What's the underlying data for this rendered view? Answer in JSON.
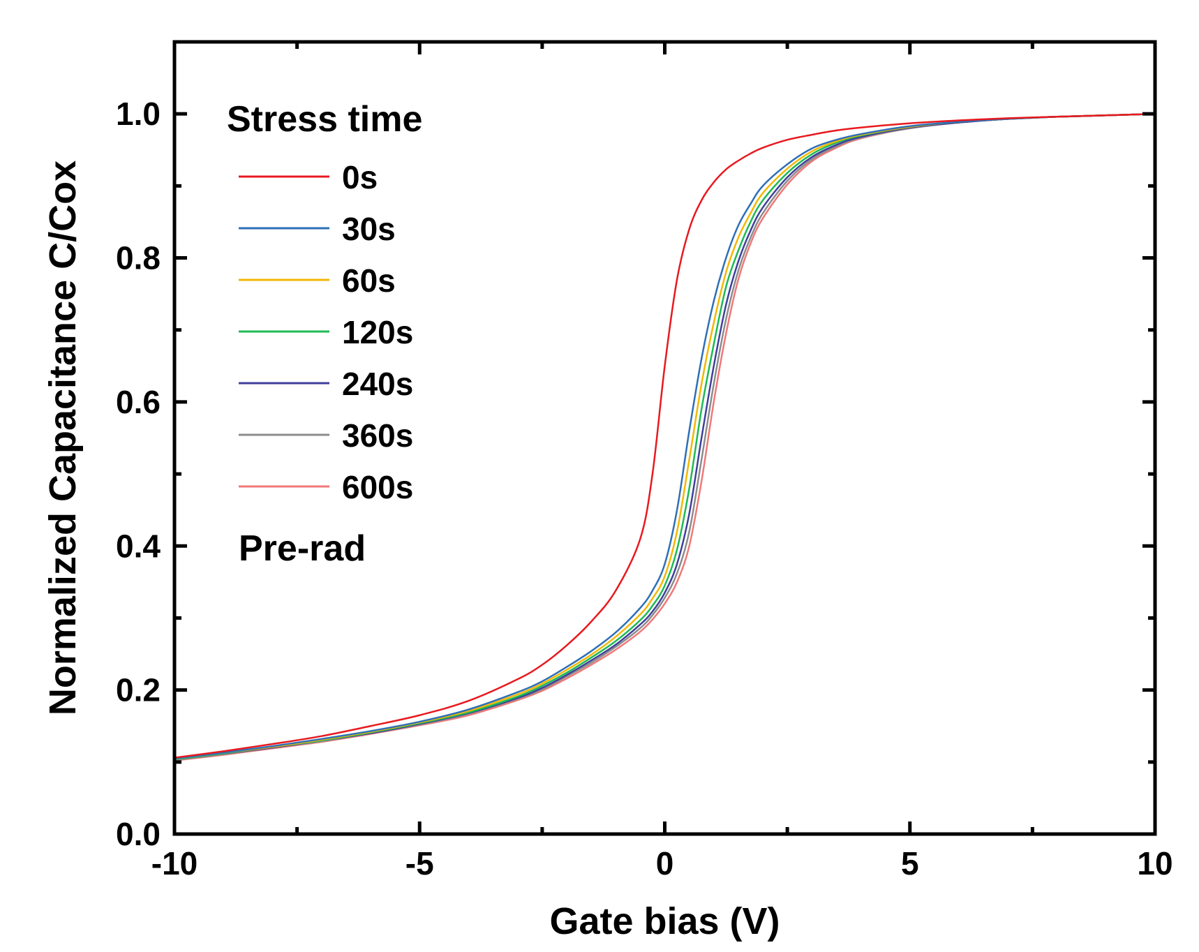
{
  "chart_data": {
    "type": "line",
    "title": "",
    "xlabel": "Gate bias (V)",
    "ylabel": "Normalized Capacitance C/Cox",
    "xlim": [
      -10,
      10
    ],
    "ylim": [
      0,
      1.1
    ],
    "xticks": [
      -10,
      -5,
      0,
      5,
      10
    ],
    "xtick_labels": [
      "-10",
      "-5",
      "0",
      "5",
      "10"
    ],
    "yticks": [
      0,
      0.2,
      0.4,
      0.6,
      0.8,
      1.0
    ],
    "ytick_labels": [
      "0.0",
      "0.2",
      "0.4",
      "0.6",
      "0.8",
      "1.0"
    ],
    "grid": false,
    "legend": {
      "title": "Stress time",
      "placement": "top-left"
    },
    "annotation": "Pre-rad",
    "x": [
      -10,
      -9,
      -8,
      -7,
      -6,
      -5,
      -4,
      -3,
      -2.5,
      -2,
      -1.5,
      -1,
      -0.5,
      -0.25,
      0,
      0.25,
      0.5,
      0.75,
      1,
      1.25,
      1.5,
      1.75,
      2,
      2.5,
      3,
      3.5,
      4,
      5,
      6,
      7,
      8,
      9,
      10
    ],
    "series": [
      {
        "name": "0s",
        "color": "#e8191f",
        "values": [
          0.106,
          0.115,
          0.125,
          0.136,
          0.15,
          0.165,
          0.185,
          0.215,
          0.235,
          0.262,
          0.295,
          0.338,
          0.41,
          0.5,
          0.65,
          0.77,
          0.84,
          0.88,
          0.905,
          0.923,
          0.935,
          0.945,
          0.953,
          0.964,
          0.971,
          0.977,
          0.981,
          0.987,
          0.991,
          0.994,
          0.996,
          0.998,
          1.0
        ]
      },
      {
        "name": "30s",
        "color": "#2e6fb7",
        "values": [
          0.105,
          0.113,
          0.122,
          0.132,
          0.143,
          0.156,
          0.173,
          0.197,
          0.212,
          0.232,
          0.254,
          0.28,
          0.314,
          0.338,
          0.375,
          0.45,
          0.56,
          0.66,
          0.74,
          0.8,
          0.845,
          0.875,
          0.9,
          0.93,
          0.952,
          0.964,
          0.972,
          0.983,
          0.989,
          0.993,
          0.996,
          0.998,
          1.0
        ]
      },
      {
        "name": "60s",
        "color": "#f2b705",
        "values": [
          0.105,
          0.113,
          0.121,
          0.131,
          0.142,
          0.155,
          0.171,
          0.194,
          0.209,
          0.228,
          0.249,
          0.274,
          0.305,
          0.327,
          0.358,
          0.42,
          0.52,
          0.625,
          0.71,
          0.78,
          0.828,
          0.862,
          0.89,
          0.924,
          0.948,
          0.962,
          0.971,
          0.982,
          0.989,
          0.993,
          0.996,
          0.998,
          1.0
        ]
      },
      {
        "name": "120s",
        "color": "#1db954",
        "values": [
          0.104,
          0.112,
          0.121,
          0.13,
          0.141,
          0.154,
          0.169,
          0.191,
          0.206,
          0.224,
          0.245,
          0.268,
          0.297,
          0.317,
          0.345,
          0.395,
          0.48,
          0.59,
          0.68,
          0.76,
          0.81,
          0.85,
          0.88,
          0.918,
          0.944,
          0.96,
          0.97,
          0.982,
          0.989,
          0.993,
          0.996,
          0.998,
          1.0
        ]
      },
      {
        "name": "240s",
        "color": "#3f3f9a",
        "values": [
          0.104,
          0.112,
          0.12,
          0.13,
          0.14,
          0.153,
          0.168,
          0.189,
          0.203,
          0.221,
          0.241,
          0.263,
          0.291,
          0.309,
          0.335,
          0.375,
          0.445,
          0.55,
          0.65,
          0.735,
          0.795,
          0.838,
          0.87,
          0.912,
          0.94,
          0.957,
          0.968,
          0.981,
          0.988,
          0.993,
          0.996,
          0.998,
          1.0
        ]
      },
      {
        "name": "360s",
        "color": "#8c8c8c",
        "values": [
          0.103,
          0.111,
          0.12,
          0.129,
          0.14,
          0.152,
          0.167,
          0.188,
          0.201,
          0.219,
          0.238,
          0.26,
          0.286,
          0.304,
          0.328,
          0.362,
          0.42,
          0.52,
          0.625,
          0.715,
          0.782,
          0.828,
          0.862,
          0.907,
          0.937,
          0.955,
          0.967,
          0.98,
          0.988,
          0.993,
          0.996,
          0.998,
          1.0
        ]
      },
      {
        "name": "600s",
        "color": "#f07878",
        "values": [
          0.102,
          0.11,
          0.119,
          0.128,
          0.139,
          0.151,
          0.165,
          0.186,
          0.199,
          0.216,
          0.235,
          0.256,
          0.281,
          0.298,
          0.32,
          0.35,
          0.4,
          0.49,
          0.6,
          0.695,
          0.77,
          0.82,
          0.855,
          0.902,
          0.934,
          0.953,
          0.966,
          0.98,
          0.988,
          0.993,
          0.996,
          0.998,
          1.0
        ]
      }
    ]
  }
}
